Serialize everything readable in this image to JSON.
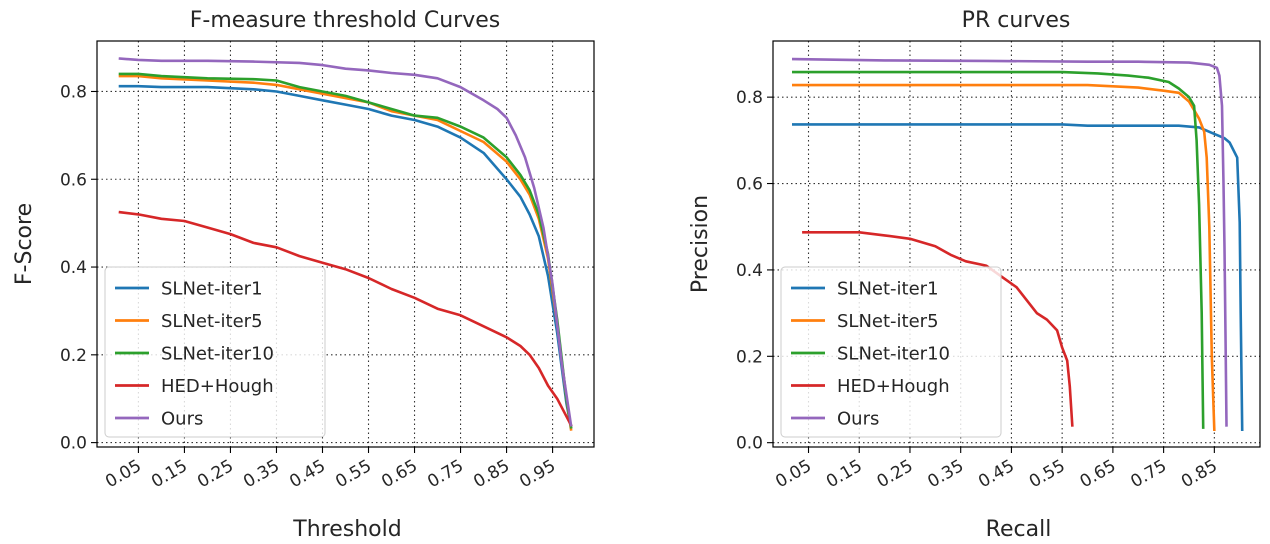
{
  "chart_data": [
    {
      "type": "line",
      "title": "F-measure threshold Curves",
      "xlabel": "Threshold",
      "ylabel": "F-Score",
      "xlim": [
        -0.04,
        1.04
      ],
      "ylim": [
        -0.01,
        0.915
      ],
      "xticks": [
        0.05,
        0.15,
        0.25,
        0.35,
        0.45,
        0.55,
        0.65,
        0.75,
        0.85,
        0.95
      ],
      "xtick_labels": [
        "0.05",
        "0.15",
        "0.25",
        "0.35",
        "0.45",
        "0.55",
        "0.65",
        "0.75",
        "0.85",
        "0.95"
      ],
      "yticks": [
        0.0,
        0.2,
        0.4,
        0.6,
        0.8
      ],
      "ytick_labels": [
        "0.0",
        "0.2",
        "0.4",
        "0.6",
        "0.8"
      ],
      "grid": true,
      "legend_position": "lower-left",
      "series": [
        {
          "name": "SLNet-iter1",
          "color": "#1f77b4",
          "x": [
            0.01,
            0.05,
            0.1,
            0.2,
            0.3,
            0.35,
            0.4,
            0.45,
            0.5,
            0.55,
            0.6,
            0.65,
            0.7,
            0.75,
            0.8,
            0.85,
            0.88,
            0.9,
            0.92,
            0.94,
            0.96,
            0.98,
            0.99
          ],
          "y": [
            0.812,
            0.812,
            0.81,
            0.81,
            0.805,
            0.8,
            0.79,
            0.78,
            0.77,
            0.76,
            0.745,
            0.735,
            0.72,
            0.695,
            0.66,
            0.6,
            0.56,
            0.52,
            0.47,
            0.38,
            0.25,
            0.09,
            0.035
          ]
        },
        {
          "name": "SLNet-iter5",
          "color": "#ff7f0e",
          "x": [
            0.01,
            0.05,
            0.1,
            0.2,
            0.3,
            0.35,
            0.4,
            0.45,
            0.5,
            0.55,
            0.6,
            0.65,
            0.7,
            0.75,
            0.8,
            0.85,
            0.88,
            0.9,
            0.92,
            0.94,
            0.96,
            0.98,
            0.99
          ],
          "y": [
            0.835,
            0.835,
            0.83,
            0.825,
            0.82,
            0.815,
            0.805,
            0.795,
            0.785,
            0.775,
            0.755,
            0.745,
            0.735,
            0.71,
            0.685,
            0.64,
            0.6,
            0.565,
            0.51,
            0.42,
            0.27,
            0.1,
            0.03
          ]
        },
        {
          "name": "SLNet-iter10",
          "color": "#2ca02c",
          "x": [
            0.01,
            0.05,
            0.1,
            0.2,
            0.3,
            0.35,
            0.4,
            0.45,
            0.5,
            0.55,
            0.6,
            0.65,
            0.7,
            0.75,
            0.8,
            0.85,
            0.88,
            0.9,
            0.92,
            0.94,
            0.96,
            0.98,
            0.99
          ],
          "y": [
            0.84,
            0.84,
            0.835,
            0.83,
            0.828,
            0.825,
            0.81,
            0.8,
            0.79,
            0.775,
            0.76,
            0.745,
            0.74,
            0.72,
            0.695,
            0.65,
            0.61,
            0.575,
            0.52,
            0.43,
            0.28,
            0.1,
            0.035
          ]
        },
        {
          "name": "HED+Hough",
          "color": "#d62728",
          "x": [
            0.01,
            0.05,
            0.1,
            0.15,
            0.2,
            0.25,
            0.3,
            0.35,
            0.4,
            0.45,
            0.5,
            0.55,
            0.6,
            0.65,
            0.7,
            0.75,
            0.8,
            0.85,
            0.88,
            0.9,
            0.92,
            0.94,
            0.96,
            0.98,
            0.99
          ],
          "y": [
            0.525,
            0.52,
            0.51,
            0.505,
            0.49,
            0.475,
            0.455,
            0.445,
            0.425,
            0.41,
            0.395,
            0.375,
            0.35,
            0.33,
            0.305,
            0.29,
            0.265,
            0.24,
            0.22,
            0.2,
            0.17,
            0.13,
            0.1,
            0.06,
            0.04
          ]
        },
        {
          "name": "Ours",
          "color": "#9467bd",
          "x": [
            0.01,
            0.05,
            0.1,
            0.2,
            0.3,
            0.4,
            0.45,
            0.5,
            0.55,
            0.6,
            0.65,
            0.7,
            0.75,
            0.8,
            0.83,
            0.85,
            0.87,
            0.89,
            0.91,
            0.93,
            0.95,
            0.97,
            0.99
          ],
          "y": [
            0.875,
            0.872,
            0.87,
            0.87,
            0.868,
            0.865,
            0.86,
            0.852,
            0.848,
            0.842,
            0.838,
            0.83,
            0.81,
            0.78,
            0.76,
            0.74,
            0.7,
            0.65,
            0.58,
            0.49,
            0.36,
            0.18,
            0.04
          ]
        }
      ]
    },
    {
      "type": "line",
      "title": "PR curves",
      "xlabel": "Recall",
      "ylabel": "Precision",
      "xlim": [
        -0.02,
        0.94
      ],
      "ylim": [
        -0.01,
        0.93
      ],
      "xticks": [
        0.05,
        0.15,
        0.25,
        0.35,
        0.45,
        0.55,
        0.65,
        0.75,
        0.85
      ],
      "xtick_labels": [
        "0.05",
        "0.15",
        "0.25",
        "0.35",
        "0.45",
        "0.55",
        "0.65",
        "0.75",
        "0.85"
      ],
      "yticks": [
        0.0,
        0.2,
        0.4,
        0.6,
        0.8
      ],
      "ytick_labels": [
        "0.0",
        "0.2",
        "0.4",
        "0.6",
        "0.8"
      ],
      "grid": true,
      "legend_position": "lower-left",
      "series": [
        {
          "name": "SLNet-iter1",
          "color": "#1f77b4",
          "x": [
            0.02,
            0.2,
            0.4,
            0.55,
            0.6,
            0.7,
            0.78,
            0.82,
            0.85,
            0.87,
            0.88,
            0.895,
            0.9,
            0.902,
            0.905
          ],
          "y": [
            0.737,
            0.737,
            0.737,
            0.737,
            0.734,
            0.734,
            0.734,
            0.73,
            0.715,
            0.705,
            0.695,
            0.66,
            0.51,
            0.3,
            0.03
          ]
        },
        {
          "name": "SLNet-iter5",
          "color": "#ff7f0e",
          "x": [
            0.02,
            0.2,
            0.4,
            0.6,
            0.7,
            0.75,
            0.78,
            0.8,
            0.81,
            0.82,
            0.83,
            0.835,
            0.84,
            0.845,
            0.85
          ],
          "y": [
            0.828,
            0.828,
            0.828,
            0.828,
            0.822,
            0.815,
            0.81,
            0.79,
            0.77,
            0.75,
            0.72,
            0.66,
            0.5,
            0.2,
            0.03
          ]
        },
        {
          "name": "SLNet-iter10",
          "color": "#2ca02c",
          "x": [
            0.02,
            0.2,
            0.4,
            0.55,
            0.62,
            0.68,
            0.72,
            0.76,
            0.78,
            0.8,
            0.81,
            0.815,
            0.82,
            0.825,
            0.828
          ],
          "y": [
            0.858,
            0.858,
            0.858,
            0.858,
            0.855,
            0.85,
            0.845,
            0.835,
            0.82,
            0.8,
            0.78,
            0.7,
            0.55,
            0.3,
            0.035
          ]
        },
        {
          "name": "HED+Hough",
          "color": "#d62728",
          "x": [
            0.04,
            0.1,
            0.15,
            0.2,
            0.25,
            0.3,
            0.33,
            0.36,
            0.4,
            0.43,
            0.46,
            0.48,
            0.5,
            0.52,
            0.54,
            0.55,
            0.56,
            0.565,
            0.57
          ],
          "y": [
            0.487,
            0.487,
            0.487,
            0.48,
            0.472,
            0.455,
            0.435,
            0.42,
            0.41,
            0.385,
            0.36,
            0.33,
            0.3,
            0.285,
            0.26,
            0.22,
            0.19,
            0.13,
            0.04
          ]
        },
        {
          "name": "Ours",
          "color": "#9467bd",
          "x": [
            0.02,
            0.2,
            0.4,
            0.6,
            0.7,
            0.8,
            0.84,
            0.855,
            0.86,
            0.865,
            0.868,
            0.87,
            0.872,
            0.874
          ],
          "y": [
            0.888,
            0.885,
            0.884,
            0.882,
            0.882,
            0.88,
            0.875,
            0.868,
            0.85,
            0.78,
            0.6,
            0.45,
            0.25,
            0.04
          ]
        }
      ]
    }
  ]
}
